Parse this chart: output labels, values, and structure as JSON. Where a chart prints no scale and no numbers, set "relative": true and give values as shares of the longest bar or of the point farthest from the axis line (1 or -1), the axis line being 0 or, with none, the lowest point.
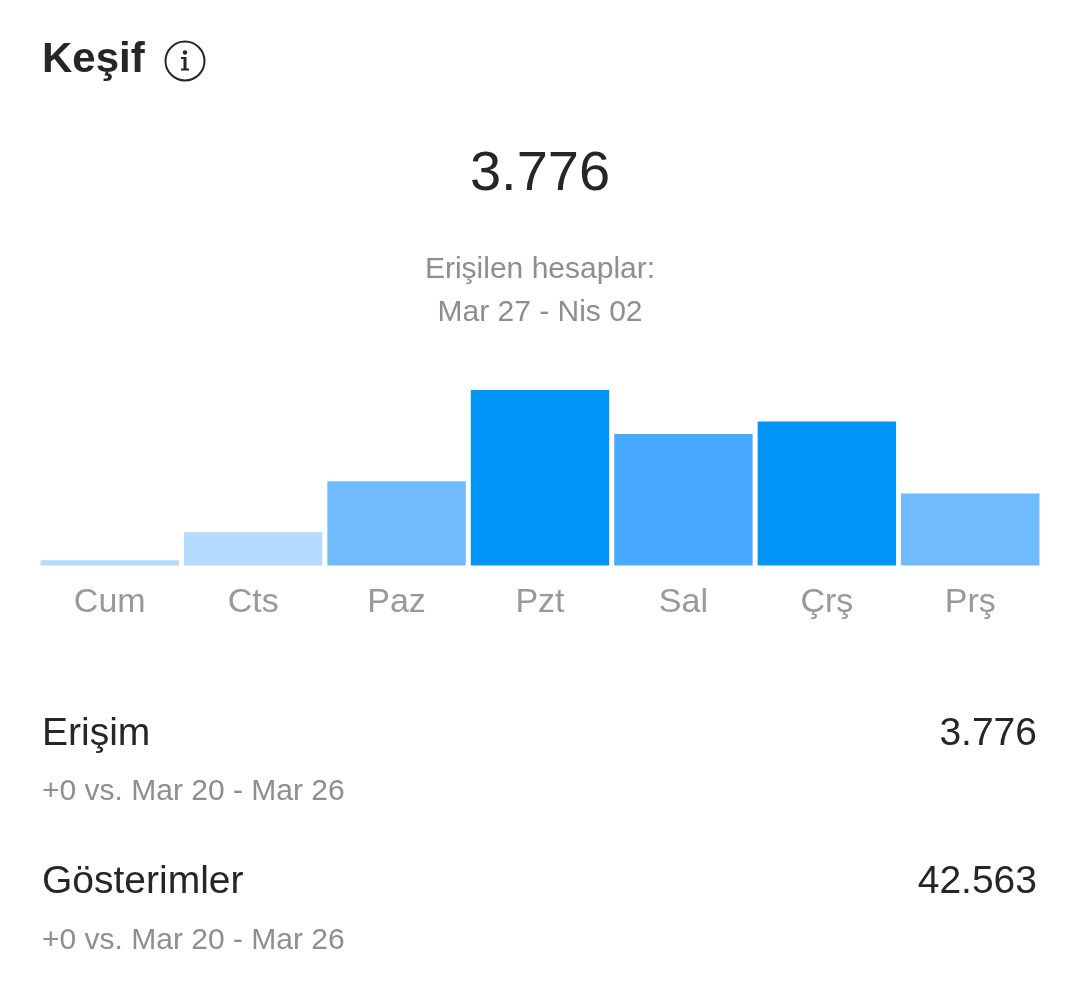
{
  "chart_data": {
    "type": "bar",
    "title": "Keşif",
    "subtitle": "Erişilen hesaplar:\nMar 27 - Nis 02",
    "categories": [
      "Cum",
      "Cts",
      "Paz",
      "Pzt",
      "Sal",
      "Çrş",
      "Prş"
    ],
    "values": [
      0.03,
      0.19,
      0.48,
      1,
      0.75,
      0.82,
      0.41
    ],
    "colors": [
      "#b3dbff",
      "#b3dbff",
      "#70bbfd",
      "#0095f6",
      "#47aafe",
      "#0095f6",
      "#70bbfd"
    ],
    "relative": true,
    "annotations": [
      "3.776",
      "Erişim",
      "3.776",
      "+0 vs. Mar 20 - Mar 26",
      "Gösterimler",
      "42.563",
      "+0 vs. Mar 20 - Mar 26"
    ]
  }
}
